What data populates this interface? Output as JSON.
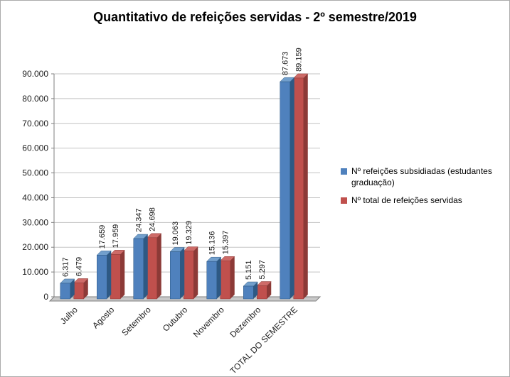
{
  "title": "Quantitativo de refeições servidas - 2º semestre/2019",
  "chart_data": {
    "type": "bar",
    "style": "3d-clustered-column",
    "title": "Quantitativo de refeições servidas - 2º semestre/2019",
    "categories": [
      "Julho",
      "Agosto",
      "Setembro",
      "Outubro",
      "Novembro",
      "Dezembro",
      "TOTAL DO SEMESTRE"
    ],
    "series": [
      {
        "name": "Nº refeições subsidiadas (estudantes graduação)",
        "color": "#4F81BD",
        "top_color": "#729FCC",
        "side_color": "#2E5984",
        "values": [
          6317,
          17659,
          24347,
          19063,
          15136,
          5151,
          87673
        ],
        "value_labels": [
          "6.317",
          "17.659",
          "24.347",
          "19.063",
          "15.136",
          "5.151",
          "87.673"
        ]
      },
      {
        "name": "Nº total de refeições servidas",
        "color": "#C0504D",
        "top_color": "#CE6B68",
        "side_color": "#8C3A37",
        "values": [
          6479,
          17959,
          24698,
          19329,
          15397,
          5297,
          89159
        ],
        "value_labels": [
          "6.479",
          "17.959",
          "24.698",
          "19.329",
          "15.397",
          "5.297",
          "89.159"
        ]
      }
    ],
    "y_ticks": [
      "0",
      "10.000",
      "20.000",
      "30.000",
      "40.000",
      "50.000",
      "60.000",
      "70.000",
      "80.000",
      "90.000"
    ],
    "ylim": [
      0,
      90000
    ],
    "grid": true,
    "legend_position": "right"
  }
}
